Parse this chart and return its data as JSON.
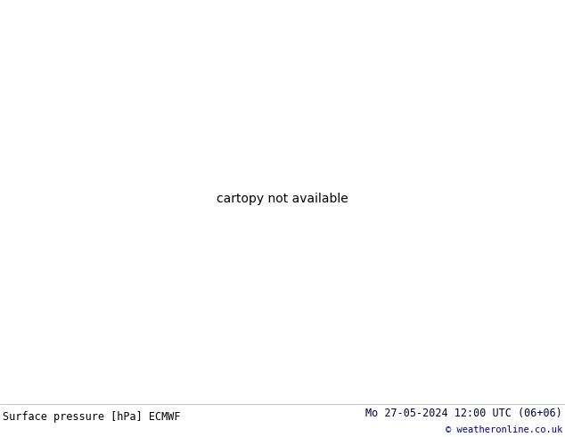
{
  "title_left": "Surface pressure [hPa] ECMWF",
  "title_right": "Mo 27-05-2024 12:00 UTC (06+06)",
  "copyright": "© weatheronline.co.uk",
  "land_color": "#b8e888",
  "sea_color": "#d8d8d8",
  "italy_fill": "#b8e888",
  "italy_border_color": "#111111",
  "other_border_color": "#888899",
  "contour_color": "red",
  "text_color_left": "#000000",
  "text_color_right": "#000033",
  "copyright_color": "#000099",
  "footer_bg": "#ffffff",
  "fig_width": 6.34,
  "fig_height": 4.9,
  "dpi": 100,
  "lon_min": 5.5,
  "lon_max": 21.5,
  "lat_min": 35.0,
  "lat_max": 48.5
}
